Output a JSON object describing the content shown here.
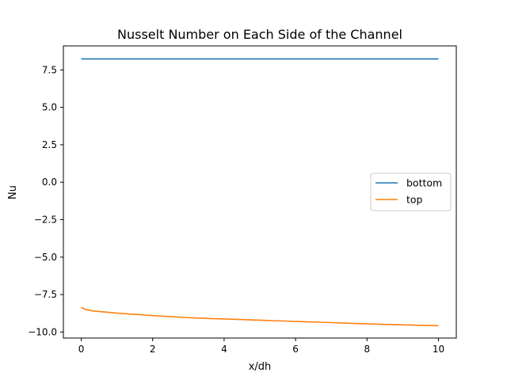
{
  "chart_data": {
    "type": "line",
    "title": "Nusselt Number on Each Side of the Channel",
    "xlabel": "x/dh",
    "ylabel": "Nu",
    "xlim": [
      -0.5,
      10.5
    ],
    "ylim": [
      -10.4,
      9.1
    ],
    "xticks": [
      0,
      2,
      4,
      6,
      8,
      10
    ],
    "xtick_labels": [
      "0",
      "2",
      "4",
      "6",
      "8",
      "10"
    ],
    "yticks": [
      -10.0,
      -7.5,
      -5.0,
      -2.5,
      0.0,
      2.5,
      5.0,
      7.5
    ],
    "ytick_labels": [
      "−10.0",
      "−7.5",
      "−5.0",
      "−2.5",
      "0.0",
      "2.5",
      "5.0",
      "7.5"
    ],
    "grid": false,
    "legend_position": "center-right",
    "series": [
      {
        "name": "bottom",
        "color": "#1f77b4",
        "x": [
          0,
          0.5,
          1,
          1.5,
          2,
          2.5,
          3,
          3.5,
          4,
          4.5,
          5,
          5.5,
          6,
          6.5,
          7,
          7.5,
          8,
          8.5,
          9,
          9.5,
          10
        ],
        "y": [
          8.23,
          8.23,
          8.23,
          8.23,
          8.23,
          8.23,
          8.23,
          8.23,
          8.23,
          8.23,
          8.23,
          8.23,
          8.23,
          8.23,
          8.23,
          8.23,
          8.23,
          8.23,
          8.23,
          8.23,
          8.23
        ]
      },
      {
        "name": "top",
        "color": "#ff7f0e",
        "x": [
          0,
          0.1,
          0.2,
          0.3,
          0.5,
          0.75,
          1,
          1.5,
          2,
          2.5,
          3,
          3.5,
          4,
          4.5,
          5,
          5.5,
          6,
          6.5,
          7,
          7.5,
          8,
          8.5,
          9,
          9.5,
          10
        ],
        "y": [
          -8.35,
          -8.47,
          -8.53,
          -8.58,
          -8.63,
          -8.68,
          -8.74,
          -8.82,
          -8.9,
          -8.97,
          -9.04,
          -9.09,
          -9.13,
          -9.17,
          -9.21,
          -9.25,
          -9.29,
          -9.33,
          -9.37,
          -9.41,
          -9.45,
          -9.49,
          -9.52,
          -9.55,
          -9.58
        ]
      }
    ]
  }
}
